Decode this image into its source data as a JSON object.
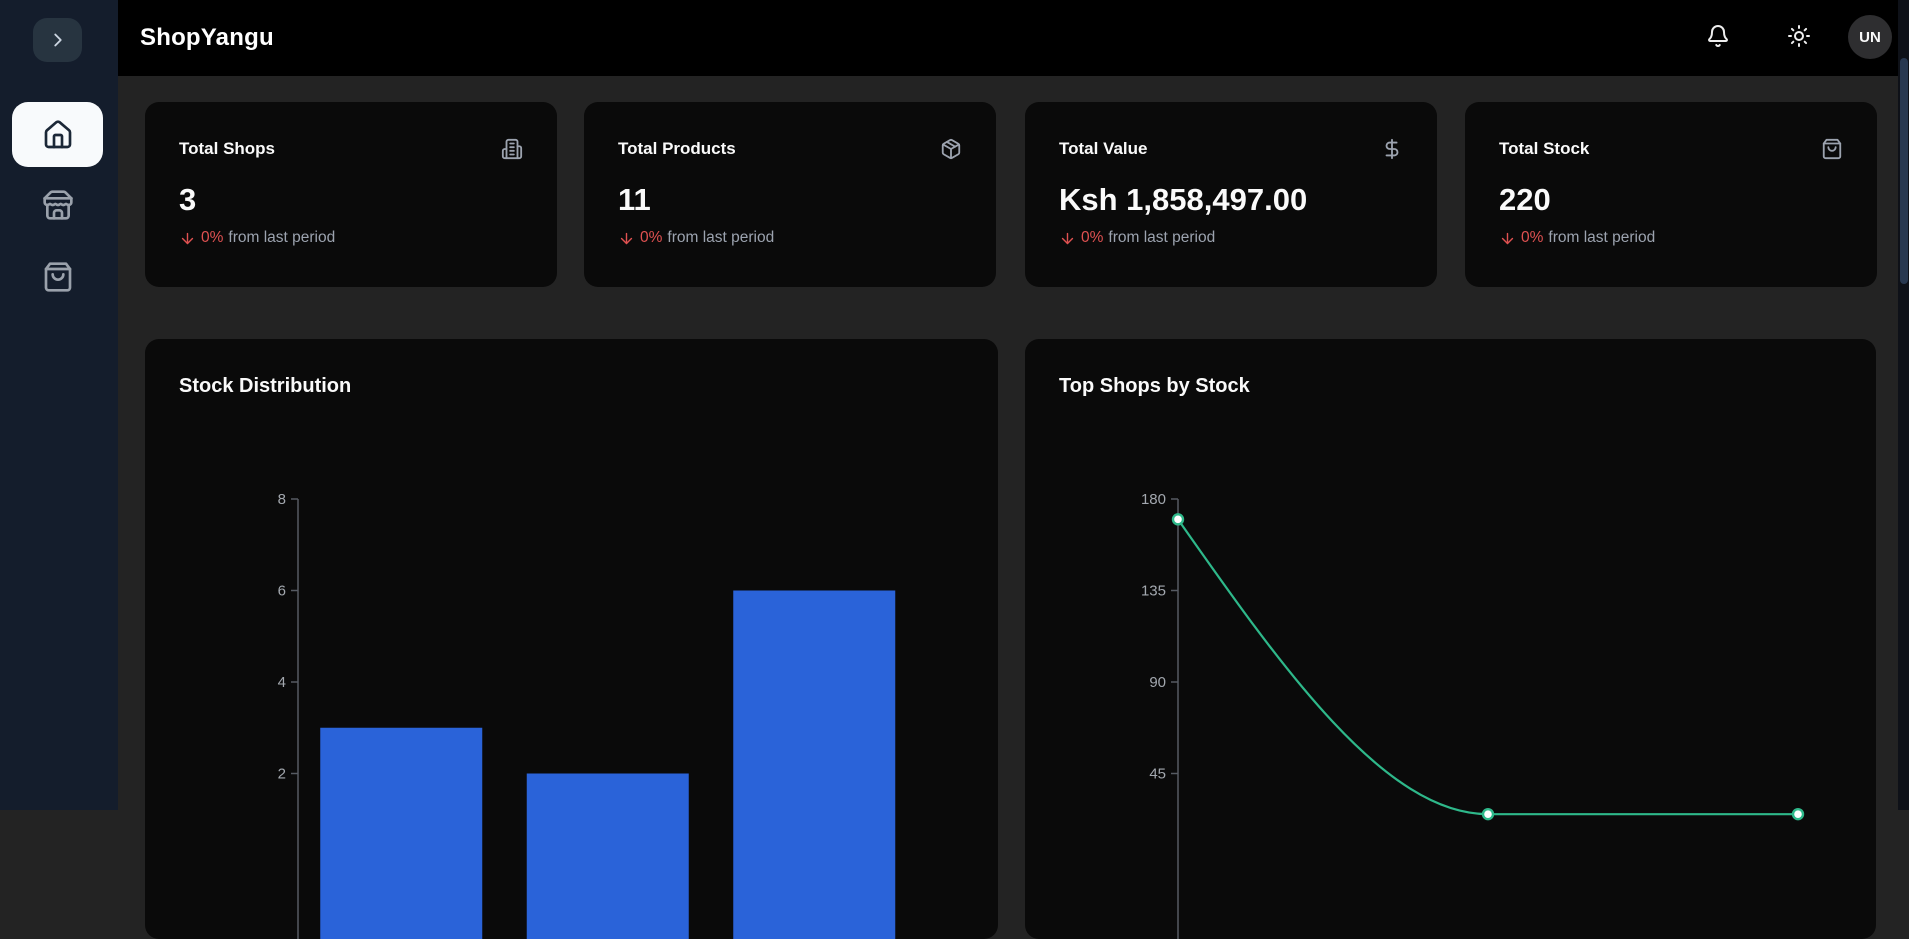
{
  "topbar": {
    "logo": "ShopYangu",
    "avatar_initials": "UN",
    "bell_icon": "bell",
    "theme_icon": "sun"
  },
  "sidebar": {
    "collapse_icon": "chevron-right",
    "items": [
      {
        "id": "dashboard",
        "icon": "home",
        "active": true
      },
      {
        "id": "shops",
        "icon": "store",
        "active": false
      },
      {
        "id": "products",
        "icon": "shopping-bag",
        "active": false
      }
    ]
  },
  "stat_cards": [
    {
      "title": "Total Shops",
      "value": "3",
      "icon": "building-2",
      "trend": "down",
      "delta_pct": "0%",
      "delta_suffix": "from last period"
    },
    {
      "title": "Total Products",
      "value": "11",
      "icon": "package",
      "trend": "down",
      "delta_pct": "0%",
      "delta_suffix": "from last period"
    },
    {
      "title": "Total Value",
      "value": "Ksh 1,858,497.00",
      "icon": "dollar-sign",
      "trend": "down",
      "delta_pct": "0%",
      "delta_suffix": "from last period"
    },
    {
      "title": "Total Stock",
      "value": "220",
      "icon": "shopping-bag",
      "trend": "down",
      "delta_pct": "0%",
      "delta_suffix": "from last period"
    }
  ],
  "chart_data": [
    {
      "type": "bar",
      "title": "Stock Distribution",
      "values": [
        3,
        2,
        6
      ],
      "yticks": [
        2,
        4,
        6,
        8
      ],
      "ylim": [
        0,
        8
      ],
      "color": "#2a63d9",
      "grid": false,
      "note": "x-axis category labels cut off below viewport"
    },
    {
      "type": "line",
      "title": "Top Shops by Stock",
      "values": [
        170,
        25,
        25
      ],
      "yticks": [
        45,
        90,
        135,
        180
      ],
      "ylim": [
        0,
        180
      ],
      "color": "#2eb88a",
      "grid": false,
      "note": "curve descends from 170 and flattens; later points sit below the visible fold"
    }
  ],
  "colors": {
    "topbar_bg": "#000000",
    "sidebar_bg": "#141d2c",
    "content_bg": "#232323",
    "card_bg": "#0a0a0a",
    "accent_bar": "#2a63d9",
    "accent_line": "#2eb88a",
    "negative": "#e05151",
    "muted_text": "#9ca3af",
    "axis": "#565b63"
  }
}
